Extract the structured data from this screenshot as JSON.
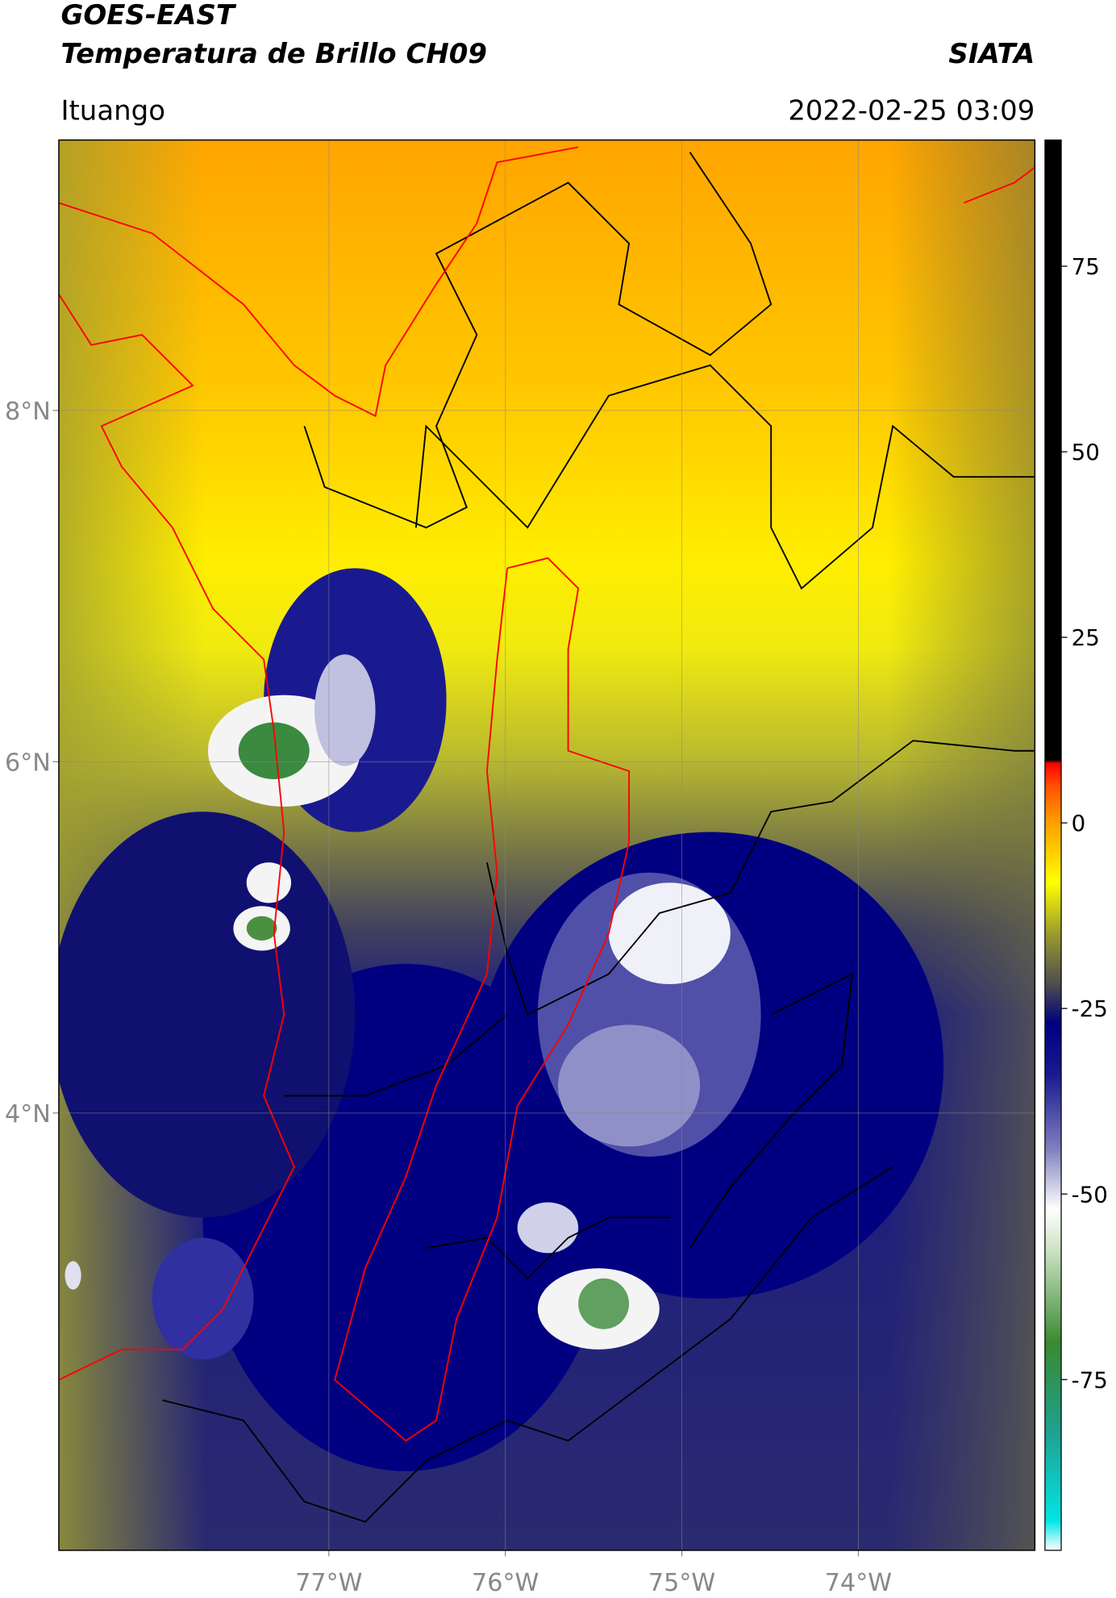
{
  "header": {
    "title_line1": "GOES-EAST",
    "title_line2": "Temperatura de Brillo CH09",
    "brand": "SIATA",
    "region": "Ituango",
    "datetime": "2022-02-25 03:09"
  },
  "map": {
    "lon_range": [
      -78.53,
      -73.0
    ],
    "lat_range": [
      1.51,
      9.54
    ],
    "lon_ticks": [
      {
        "value": -77,
        "label": "77°W"
      },
      {
        "value": -76,
        "label": "76°W"
      },
      {
        "value": -75,
        "label": "75°W"
      },
      {
        "value": -74,
        "label": "74°W"
      }
    ],
    "lat_ticks": [
      {
        "value": 8,
        "label": "8°N"
      },
      {
        "value": 6,
        "label": "6°N"
      },
      {
        "value": 4,
        "label": "4°N"
      }
    ]
  },
  "colorbar": {
    "range": [
      -98,
      92
    ],
    "ticks": [
      75,
      50,
      25,
      0,
      -25,
      -50,
      -75
    ],
    "stops": [
      {
        "value": -98,
        "color": "#ffffff"
      },
      {
        "value": -94,
        "color": "#00e5e5"
      },
      {
        "value": -82,
        "color": "#20a090"
      },
      {
        "value": -70,
        "color": "#3a8a30"
      },
      {
        "value": -58,
        "color": "#c8e0c0"
      },
      {
        "value": -52,
        "color": "#ffffff"
      },
      {
        "value": -44,
        "color": "#8080c0"
      },
      {
        "value": -34,
        "color": "#1a1a90"
      },
      {
        "value": -27,
        "color": "#000080"
      },
      {
        "value": -22,
        "color": "#4a4a50"
      },
      {
        "value": -15,
        "color": "#9a9a30"
      },
      {
        "value": -8,
        "color": "#ffff00"
      },
      {
        "value": 0,
        "color": "#ffa000"
      },
      {
        "value": 5,
        "color": "#ff5000"
      },
      {
        "value": 8,
        "color": "#ff0000"
      },
      {
        "value": 8.5,
        "color": "#000000"
      },
      {
        "value": 92,
        "color": "#000000"
      }
    ]
  }
}
